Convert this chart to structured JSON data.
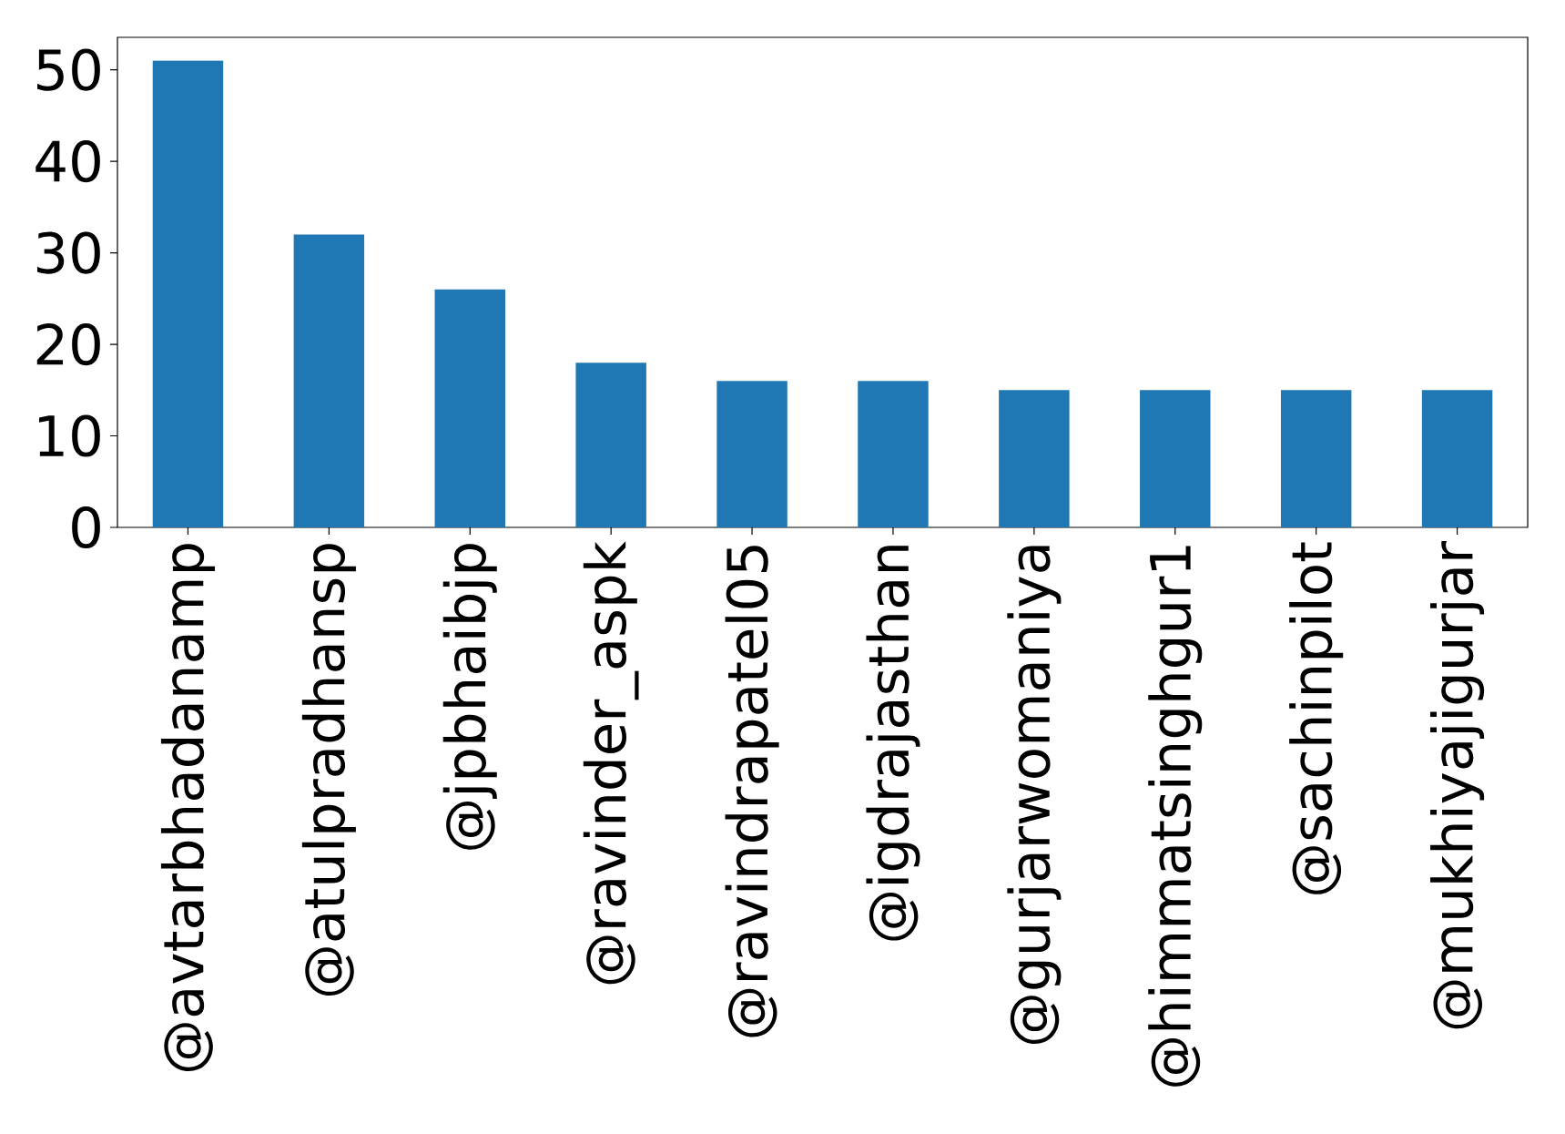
{
  "chart_data": {
    "type": "bar",
    "categories": [
      "@avtarbhadanamp",
      "@atulpradhansp",
      "@jpbhaibjp",
      "@ravinder_aspk",
      "@ravindrapatel05",
      "@igdrajasthan",
      "@gurjarwomaniya",
      "@himmatsinghgur1",
      "@sachinpilot",
      "@mukhiyajigurjar"
    ],
    "values": [
      51,
      32,
      26,
      18,
      16,
      16,
      15,
      15,
      15,
      15
    ],
    "color": "#1f77b4",
    "ylim": [
      0,
      53.55
    ],
    "yticks": [
      0,
      10,
      20,
      30,
      40,
      50
    ],
    "grid": false
  }
}
